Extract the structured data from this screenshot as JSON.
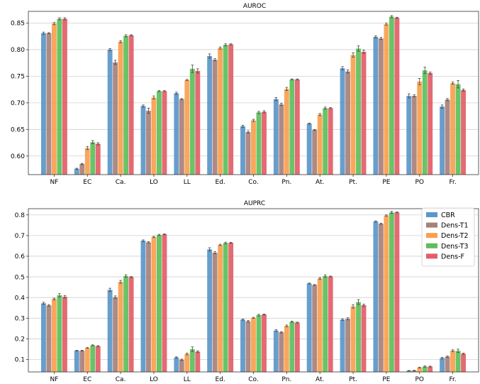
{
  "colors": {
    "CBR": "#5b96c8",
    "Dens-T1": "#a8807a",
    "Dens-T2": "#f9a04e",
    "Dens-T3": "#5cbf5a",
    "Dens-F": "#e35d67"
  },
  "legend": {
    "position": "upper-right",
    "entries": [
      "CBR",
      "Dens-T1",
      "Dens-T2",
      "Dens-T3",
      "Dens-F"
    ]
  },
  "chart_data": [
    {
      "type": "bar",
      "title": "AUROC",
      "categories": [
        "NF",
        "EC",
        "Ca.",
        "LO",
        "LL",
        "Ed.",
        "Co.",
        "Pn.",
        "At.",
        "Pt.",
        "PE",
        "PO",
        "Fr."
      ],
      "ylim": [
        0.565,
        0.872
      ],
      "yticks": [
        "0.60",
        "0.65",
        "0.70",
        "0.75",
        "0.80",
        "0.85"
      ],
      "grid": "horizontal",
      "series": [
        {
          "name": "CBR",
          "values": [
            0.831,
            0.576,
            0.8,
            0.694,
            0.718,
            0.788,
            0.656,
            0.707,
            0.661,
            0.765,
            0.824,
            0.713,
            0.693
          ],
          "errors": [
            0.002,
            0.001,
            0.002,
            0.002,
            0.002,
            0.004,
            0.002,
            0.003,
            0.001,
            0.003,
            0.002,
            0.004,
            0.003
          ]
        },
        {
          "name": "Dens-T1",
          "values": [
            0.831,
            0.585,
            0.776,
            0.685,
            0.707,
            0.781,
            0.645,
            0.697,
            0.649,
            0.759,
            0.821,
            0.713,
            0.706
          ],
          "errors": [
            0.001,
            0.001,
            0.004,
            0.005,
            0.001,
            0.002,
            0.002,
            0.002,
            0.001,
            0.003,
            0.002,
            0.002,
            0.002
          ]
        },
        {
          "name": "Dens-T2",
          "values": [
            0.849,
            0.615,
            0.815,
            0.71,
            0.743,
            0.803,
            0.667,
            0.726,
            0.678,
            0.79,
            0.848,
            0.74,
            0.737
          ],
          "errors": [
            0.002,
            0.003,
            0.002,
            0.003,
            0.001,
            0.002,
            0.002,
            0.003,
            0.002,
            0.004,
            0.002,
            0.006,
            0.002
          ]
        },
        {
          "name": "Dens-T3",
          "values": [
            0.858,
            0.626,
            0.826,
            0.722,
            0.764,
            0.809,
            0.682,
            0.744,
            0.69,
            0.802,
            0.862,
            0.761,
            0.735
          ],
          "errors": [
            0.002,
            0.003,
            0.002,
            0.001,
            0.007,
            0.002,
            0.002,
            0.001,
            0.002,
            0.005,
            0.002,
            0.006,
            0.007
          ]
        },
        {
          "name": "Dens-F",
          "values": [
            0.858,
            0.623,
            0.827,
            0.722,
            0.76,
            0.81,
            0.683,
            0.744,
            0.69,
            0.796,
            0.86,
            0.756,
            0.724
          ],
          "errors": [
            0.002,
            0.002,
            0.001,
            0.001,
            0.004,
            0.001,
            0.002,
            0.001,
            0.001,
            0.003,
            0.001,
            0.002,
            0.002
          ]
        }
      ]
    },
    {
      "type": "bar",
      "title": "AUPRC",
      "categories": [
        "NF",
        "EC",
        "Ca.",
        "LO",
        "LL",
        "Ed.",
        "Co.",
        "Pn.",
        "At.",
        "Pt.",
        "PE",
        "PO",
        "Fr."
      ],
      "ylim": [
        0.04,
        0.83
      ],
      "yticks": [
        "0.1",
        "0.2",
        "0.3",
        "0.4",
        "0.5",
        "0.6",
        "0.7",
        "0.8"
      ],
      "grid": "horizontal",
      "series": [
        {
          "name": "CBR",
          "values": [
            0.372,
            0.143,
            0.437,
            0.675,
            0.11,
            0.633,
            0.293,
            0.24,
            0.468,
            0.293,
            0.768,
            0.046,
            0.107
          ],
          "errors": [
            0.005,
            0.002,
            0.008,
            0.004,
            0.003,
            0.008,
            0.003,
            0.004,
            0.002,
            0.004,
            0.003,
            0.001,
            0.004
          ]
        },
        {
          "name": "Dens-T1",
          "values": [
            0.362,
            0.143,
            0.402,
            0.667,
            0.099,
            0.617,
            0.285,
            0.232,
            0.461,
            0.297,
            0.757,
            0.047,
            0.114
          ],
          "errors": [
            0.004,
            0.002,
            0.006,
            0.003,
            0.003,
            0.005,
            0.004,
            0.003,
            0.002,
            0.005,
            0.003,
            0.001,
            0.003
          ]
        },
        {
          "name": "Dens-T2",
          "values": [
            0.393,
            0.156,
            0.476,
            0.693,
            0.127,
            0.655,
            0.302,
            0.263,
            0.492,
            0.357,
            0.797,
            0.061,
            0.143
          ],
          "errors": [
            0.004,
            0.002,
            0.007,
            0.003,
            0.004,
            0.003,
            0.002,
            0.004,
            0.004,
            0.008,
            0.003,
            0.002,
            0.004
          ]
        },
        {
          "name": "Dens-T3",
          "values": [
            0.411,
            0.169,
            0.504,
            0.703,
            0.15,
            0.664,
            0.315,
            0.283,
            0.504,
            0.378,
            0.812,
            0.066,
            0.142
          ],
          "errors": [
            0.008,
            0.002,
            0.006,
            0.003,
            0.011,
            0.004,
            0.004,
            0.003,
            0.006,
            0.012,
            0.005,
            0.003,
            0.008
          ]
        },
        {
          "name": "Dens-F",
          "values": [
            0.404,
            0.165,
            0.499,
            0.706,
            0.138,
            0.665,
            0.318,
            0.279,
            0.502,
            0.363,
            0.812,
            0.066,
            0.128
          ],
          "errors": [
            0.006,
            0.002,
            0.003,
            0.002,
            0.004,
            0.002,
            0.002,
            0.002,
            0.002,
            0.005,
            0.002,
            0.002,
            0.003
          ]
        }
      ]
    }
  ]
}
